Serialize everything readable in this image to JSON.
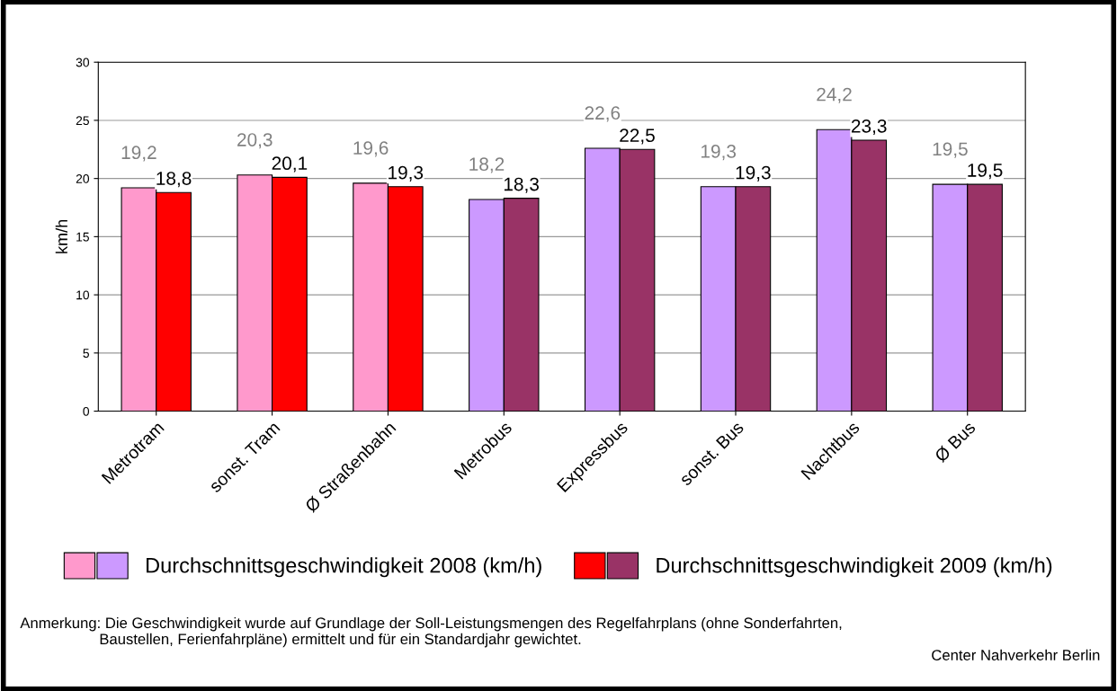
{
  "chart_data": {
    "type": "bar",
    "ylabel": "km/h",
    "categories": [
      "Metrotram",
      "sonst. Tram",
      "Ø Straßenbahn",
      "Metrobus",
      "Expressbus",
      "sonst. Bus",
      "Nachtbus",
      "Ø Bus"
    ],
    "series": [
      {
        "name": "Durchschnittsgeschwindigkeit 2008 (km/h)",
        "colors": [
          "#ff99cc",
          "#ff99cc",
          "#ff99cc",
          "#cc99ff",
          "#cc99ff",
          "#cc99ff",
          "#cc99ff",
          "#cc99ff"
        ],
        "values": [
          19.2,
          20.3,
          19.6,
          18.2,
          22.6,
          19.3,
          24.2,
          19.5
        ],
        "value_labels": [
          "19,2",
          "20,3",
          "19,6",
          "18,2",
          "22,6",
          "19,3",
          "24,2",
          "19,5"
        ]
      },
      {
        "name": "Durchschnittsgeschwindigkeit 2009 (km/h)",
        "colors": [
          "#ff0000",
          "#ff0000",
          "#ff0000",
          "#993366",
          "#993366",
          "#993366",
          "#993366",
          "#993366"
        ],
        "values": [
          18.8,
          20.1,
          19.3,
          18.3,
          22.5,
          19.3,
          23.3,
          19.5
        ],
        "value_labels": [
          "18,8",
          "20,1",
          "19,3",
          "18,3",
          "22,5",
          "19,3",
          "23,3",
          "19,5"
        ]
      }
    ],
    "ylim": [
      0,
      30
    ],
    "yticks": [
      0,
      5,
      10,
      15,
      20,
      25,
      30
    ],
    "grid": "y",
    "legend": "bottom",
    "annotations": [
      "Anmerkung: Die Geschwindigkeit wurde auf Grundlage der Soll-Leistungsmengen des Regelfahrplans (ohne Sonderfahrten,\n                   Baustellen, Ferienfahrpläne) ermittelt und für ein Standardjahr gewichtet.",
      "Center Nahverkehr Berlin"
    ]
  }
}
